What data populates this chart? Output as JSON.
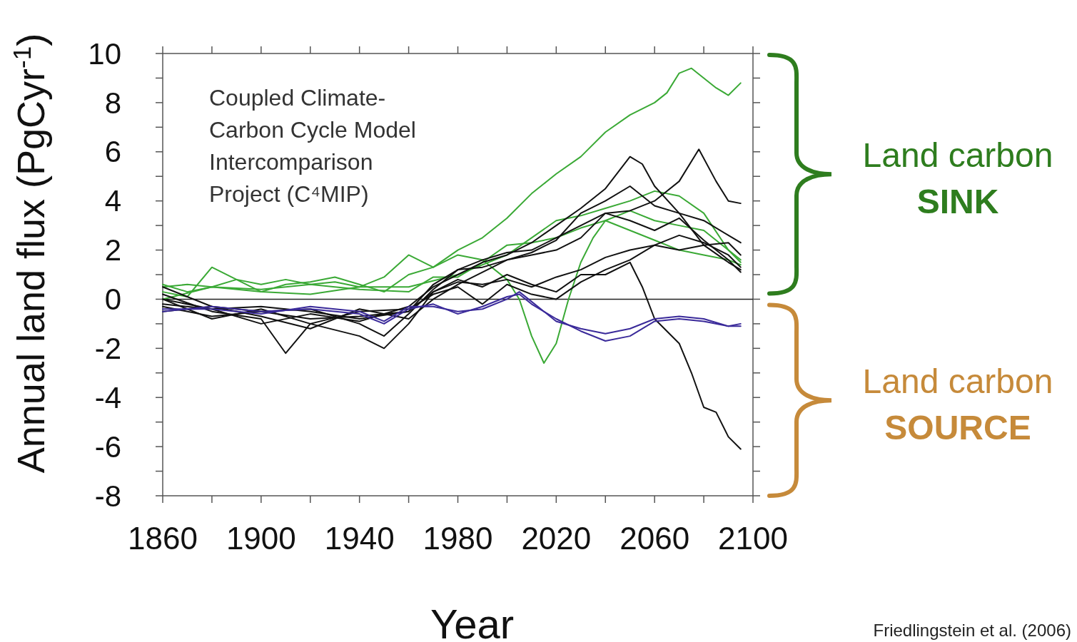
{
  "chart_data": {
    "type": "line",
    "title": "Coupled Climate-Carbon Cycle Model Intercomparison Project (C⁴MIP)",
    "xlabel": "Year",
    "ylabel": "Annual land flux (PgCyr$^{-1}$)",
    "xlim": [
      1860,
      2100
    ],
    "ylim": [
      -8,
      10
    ],
    "xticks": [
      1860,
      {
        "value": 1880,
        "label": null
      },
      1900,
      {
        "value": 1920,
        "label": null
      },
      1940,
      {
        "value": 1960,
        "label": null
      },
      1980,
      {
        "value": 2000,
        "label": null
      },
      2020,
      {
        "value": 2040,
        "label": null
      },
      2060,
      {
        "value": 2080,
        "label": null
      },
      2100
    ],
    "yticks": [
      -8,
      {
        "value": -7,
        "label": null
      },
      -6,
      {
        "value": -5,
        "label": null
      },
      -4,
      {
        "value": -3,
        "label": null
      },
      -2,
      {
        "value": -1,
        "label": null
      },
      0,
      {
        "value": 1,
        "label": null
      },
      2,
      {
        "value": 3,
        "label": null
      },
      4,
      {
        "value": 5,
        "label": null
      },
      6,
      {
        "value": 7,
        "label": null
      },
      8,
      {
        "value": 9,
        "label": null
      },
      10
    ],
    "grid": false,
    "marker": "none",
    "line_style": "solid",
    "ref_lines": [
      {
        "axis": "y",
        "value": 0,
        "color": "#222222"
      }
    ],
    "annotations": [
      "Land carbon SINK",
      "Land carbon SOURCE",
      "Friedlingstein et al. (2006)"
    ],
    "series": [
      {
        "color": "#3aa935",
        "x": [
          1860,
          1870,
          1880,
          1890,
          1900,
          1910,
          1920,
          1930,
          1940,
          1950,
          1960,
          1970,
          1980,
          1990,
          2000,
          2010,
          2020,
          2030,
          2040,
          2050,
          2060,
          2065,
          2070,
          2075,
          2080,
          2085,
          2090,
          2095
        ],
        "values": [
          0.5,
          0.6,
          0.5,
          0.8,
          0.6,
          0.8,
          0.6,
          0.7,
          0.5,
          0.9,
          1.8,
          1.3,
          2.0,
          2.5,
          3.3,
          4.3,
          5.1,
          5.8,
          6.8,
          7.5,
          8.0,
          8.4,
          9.2,
          9.4,
          9.0,
          8.6,
          8.3,
          8.8
        ]
      },
      {
        "color": "#3aa935",
        "x": [
          1860,
          1870,
          1880,
          1890,
          1900,
          1910,
          1920,
          1930,
          1940,
          1950,
          1960,
          1970,
          1980,
          1990,
          2000,
          2005,
          2010,
          2015,
          2020,
          2025,
          2030,
          2035,
          2040,
          2050,
          2060,
          2070,
          2080,
          2090,
          2095
        ],
        "values": [
          0.3,
          0.1,
          1.3,
          0.8,
          0.3,
          0.6,
          0.7,
          0.9,
          0.6,
          0.3,
          1.0,
          1.3,
          1.8,
          1.6,
          0.8,
          0.0,
          -1.5,
          -2.6,
          -1.8,
          0.0,
          1.5,
          2.5,
          3.2,
          3.6,
          3.2,
          3.0,
          2.8,
          2.0,
          1.5
        ]
      },
      {
        "color": "#3aa935",
        "x": [
          1860,
          1880,
          1900,
          1920,
          1940,
          1960,
          1980,
          2000,
          2010,
          2020,
          2030,
          2040,
          2050,
          2060,
          2070,
          2080,
          2090,
          2095
        ],
        "values": [
          0.0,
          0.5,
          0.3,
          0.2,
          0.5,
          0.5,
          1.0,
          1.8,
          2.5,
          3.2,
          3.4,
          3.7,
          4.0,
          4.4,
          4.2,
          3.5,
          2.0,
          1.6
        ]
      },
      {
        "color": "#3aa935",
        "x": [
          1860,
          1870,
          1880,
          1900,
          1920,
          1940,
          1960,
          1970,
          1980,
          1990,
          2000,
          2010,
          2020,
          2030,
          2040,
          2050,
          2060,
          2070,
          2080,
          2090,
          2095
        ],
        "values": [
          0.6,
          0.3,
          0.5,
          0.4,
          0.6,
          0.4,
          0.3,
          0.9,
          0.9,
          1.5,
          2.2,
          2.3,
          2.5,
          2.9,
          3.2,
          2.8,
          2.4,
          2.0,
          1.8,
          1.6,
          1.4
        ]
      },
      {
        "color": "#111111",
        "x": [
          1860,
          1880,
          1900,
          1910,
          1920,
          1940,
          1950,
          1960,
          1970,
          1980,
          1990,
          2000,
          2010,
          2020,
          2030,
          2040,
          2050,
          2055,
          2060,
          2070,
          2075,
          2080,
          2085,
          2090,
          2095
        ],
        "values": [
          0.2,
          -0.5,
          -0.8,
          -2.2,
          -1.0,
          -1.5,
          -2.0,
          -1.0,
          0.3,
          0.8,
          0.5,
          1.0,
          0.6,
          0.3,
          1.0,
          1.0,
          1.5,
          0.5,
          -0.8,
          -1.8,
          -3.0,
          -4.4,
          -4.6,
          -5.6,
          -6.1
        ]
      },
      {
        "color": "#111111",
        "x": [
          1860,
          1880,
          1900,
          1920,
          1940,
          1960,
          1970,
          1980,
          1990,
          2000,
          2010,
          2020,
          2030,
          2040,
          2050,
          2060,
          2070,
          2078,
          2085,
          2090,
          2095
        ],
        "values": [
          0.5,
          -0.3,
          -0.5,
          -0.8,
          -0.7,
          -0.5,
          0.6,
          1.2,
          1.6,
          1.9,
          2.0,
          2.5,
          3.0,
          3.5,
          3.6,
          4.0,
          4.8,
          6.1,
          4.8,
          4.0,
          3.9
        ]
      },
      {
        "color": "#111111",
        "x": [
          1860,
          1880,
          1900,
          1920,
          1940,
          1960,
          1970,
          1980,
          1990,
          2000,
          2010,
          2020,
          2030,
          2040,
          2050,
          2055,
          2060,
          2070,
          2080,
          2090,
          2095
        ],
        "values": [
          0.0,
          -0.4,
          -1.0,
          -0.6,
          -0.9,
          -0.3,
          0.5,
          1.0,
          1.5,
          1.8,
          2.3,
          3.0,
          3.7,
          4.5,
          5.8,
          5.5,
          4.6,
          3.5,
          3.2,
          2.6,
          2.3
        ]
      },
      {
        "color": "#111111",
        "x": [
          1860,
          1880,
          1900,
          1920,
          1940,
          1950,
          1960,
          1970,
          1980,
          1990,
          2000,
          2010,
          2020,
          2030,
          2040,
          2050,
          2060,
          2070,
          2080,
          2090,
          2095
        ],
        "values": [
          -0.3,
          -0.7,
          -0.5,
          -0.4,
          -1.0,
          -1.5,
          -0.6,
          0.4,
          1.2,
          1.3,
          1.6,
          1.9,
          2.4,
          3.5,
          4.0,
          4.6,
          3.8,
          3.5,
          2.2,
          2.3,
          1.8
        ]
      },
      {
        "color": "#111111",
        "x": [
          1860,
          1880,
          1900,
          1920,
          1940,
          1960,
          1970,
          1980,
          1990,
          2000,
          2010,
          2020,
          2030,
          2040,
          2050,
          2060,
          2070,
          2080,
          2090,
          2095
        ],
        "values": [
          -0.5,
          -0.3,
          -0.7,
          -1.2,
          -0.4,
          -0.8,
          0.0,
          0.6,
          1.1,
          1.6,
          1.8,
          2.0,
          2.5,
          3.5,
          3.2,
          2.8,
          3.3,
          2.4,
          1.6,
          1.1
        ]
      },
      {
        "color": "#111111",
        "x": [
          1860,
          1880,
          1900,
          1920,
          1940,
          1960,
          1970,
          1980,
          1990,
          2000,
          2010,
          2020,
          2030,
          2040,
          2050,
          2060,
          2070,
          2080,
          2090,
          2095
        ],
        "values": [
          -0.2,
          -0.4,
          -0.3,
          -0.5,
          -0.8,
          -0.5,
          0.3,
          0.7,
          0.6,
          0.8,
          0.5,
          0.9,
          1.2,
          1.7,
          2.0,
          2.2,
          2.0,
          2.2,
          1.5,
          1.2
        ]
      },
      {
        "color": "#111111",
        "x": [
          1860,
          1880,
          1900,
          1920,
          1940,
          1960,
          1970,
          1980,
          1990,
          2000,
          2010,
          2020,
          2030,
          2040,
          2050,
          2060,
          2070,
          2080,
          2090,
          2095
        ],
        "values": [
          0.0,
          -0.8,
          -0.4,
          -1.0,
          -0.5,
          -0.4,
          0.2,
          0.5,
          -0.2,
          0.6,
          0.2,
          0.0,
          0.7,
          1.2,
          1.6,
          2.2,
          2.6,
          2.3,
          1.8,
          1.3
        ]
      },
      {
        "color": "#3a2a9a",
        "x": [
          1860,
          1880,
          1900,
          1920,
          1940,
          1950,
          1960,
          1970,
          1980,
          1990,
          2000,
          2005,
          2010,
          2020,
          2030,
          2040,
          2050,
          2060,
          2070,
          2080,
          2090,
          2095
        ],
        "values": [
          -0.5,
          -0.3,
          -0.5,
          -0.4,
          -0.6,
          -1.0,
          -0.4,
          -0.2,
          -0.6,
          -0.3,
          0.1,
          0.2,
          -0.2,
          -0.8,
          -1.3,
          -1.7,
          -1.5,
          -0.9,
          -0.8,
          -0.9,
          -1.1,
          -1.0
        ]
      },
      {
        "color": "#3a2a9a",
        "x": [
          1860,
          1880,
          1900,
          1920,
          1940,
          1950,
          1960,
          1970,
          1980,
          1990,
          2000,
          2005,
          2010,
          2020,
          2030,
          2040,
          2050,
          2060,
          2070,
          2080,
          2090,
          2095
        ],
        "values": [
          -0.4,
          -0.4,
          -0.6,
          -0.3,
          -0.5,
          -0.9,
          -0.3,
          -0.3,
          -0.5,
          -0.4,
          0.0,
          0.3,
          -0.1,
          -0.9,
          -1.2,
          -1.4,
          -1.2,
          -0.8,
          -0.7,
          -0.8,
          -1.1,
          -1.1
        ]
      }
    ]
  }
}
